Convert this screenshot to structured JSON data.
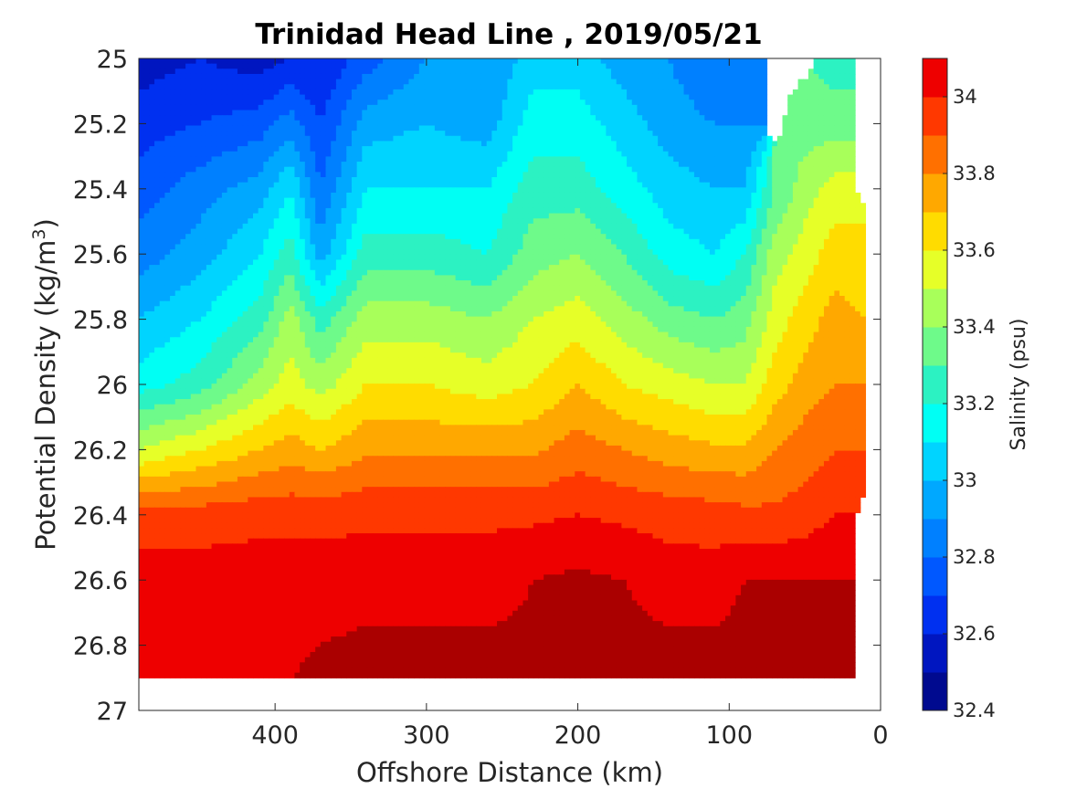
{
  "chart_data": {
    "type": "heatmap",
    "subtype": "filled-contour",
    "title": "Trinidad Head Line , 2019/05/21",
    "xlabel": "Offshore Distance (km)",
    "ylabel_main": "Potential Density (kg/m",
    "ylabel_sup": "3",
    "ylabel_end": ")",
    "colorbar_label": "Salinity (psu)",
    "xlim": [
      490,
      0
    ],
    "ylim": [
      25,
      27
    ],
    "x_reversed": true,
    "y_reversed": true,
    "xticks": [
      400,
      300,
      200,
      100,
      0
    ],
    "xtick_labels": [
      "400",
      "300",
      "200",
      "100",
      "0"
    ],
    "yticks": [
      25,
      25.2,
      25.4,
      25.6,
      25.8,
      26,
      26.2,
      26.4,
      26.6,
      26.8,
      27
    ],
    "ytick_labels": [
      "25",
      "25.2",
      "25.4",
      "25.6",
      "25.8",
      "26",
      "26.2",
      "26.4",
      "26.6",
      "26.8",
      "27"
    ],
    "colorbar_range": [
      32.4,
      34.1
    ],
    "colorbar_ticks": [
      32.4,
      32.6,
      32.8,
      33,
      33.2,
      33.4,
      33.6,
      33.8,
      34
    ],
    "colorbar_tick_labels": [
      "32.4",
      "32.6",
      "32.8",
      "33",
      "33.2",
      "33.4",
      "33.6",
      "33.8",
      "34"
    ],
    "levels": [
      32.4,
      32.5,
      32.6,
      32.7,
      32.8,
      32.9,
      33.0,
      33.1,
      33.2,
      33.3,
      33.4,
      33.5,
      33.6,
      33.7,
      33.8,
      33.9,
      34.0,
      34.1
    ],
    "colors": [
      "#000a8f",
      "#0016c0",
      "#0030f0",
      "#0058ff",
      "#0080ff",
      "#00a8ff",
      "#00d4ff",
      "#00fff4",
      "#2cf2c2",
      "#6efa8a",
      "#a8ff5a",
      "#e6ff28",
      "#ffdc00",
      "#ffa800",
      "#ff7000",
      "#ff3800",
      "#ee0000",
      "#aa0000"
    ],
    "salinity_grid": {
      "distance_km": [
        490,
        450,
        410,
        390,
        370,
        340,
        300,
        260,
        230,
        200,
        170,
        140,
        110,
        90,
        70,
        50,
        30,
        10
      ],
      "density": [
        25.0,
        25.2,
        25.4,
        25.6,
        25.8,
        26.0,
        26.2,
        26.4,
        26.6,
        26.8,
        26.9
      ],
      "values": [
        [
          32.55,
          32.6,
          32.55,
          32.6,
          32.6,
          32.75,
          32.9,
          32.9,
          33.05,
          33.05,
          32.95,
          32.9,
          32.8,
          32.8,
          null,
          null,
          33.25,
          null
        ],
        [
          32.65,
          32.7,
          32.75,
          32.85,
          32.7,
          32.95,
          33.0,
          32.95,
          33.15,
          33.15,
          33.05,
          32.95,
          32.9,
          32.9,
          null,
          33.35,
          33.35,
          null
        ],
        [
          32.75,
          32.85,
          32.95,
          33.1,
          32.8,
          33.1,
          33.1,
          33.1,
          33.25,
          33.25,
          33.15,
          33.05,
          33.0,
          33.0,
          33.3,
          33.45,
          33.55,
          null
        ],
        [
          32.85,
          32.95,
          33.1,
          33.25,
          32.95,
          33.25,
          33.25,
          33.2,
          33.35,
          33.4,
          33.3,
          33.15,
          33.1,
          33.2,
          33.45,
          33.55,
          33.65,
          33.6
        ],
        [
          33.0,
          33.1,
          33.25,
          33.45,
          33.25,
          33.45,
          33.45,
          33.4,
          33.5,
          33.55,
          33.45,
          33.35,
          33.3,
          33.35,
          33.55,
          33.65,
          33.75,
          33.7
        ],
        [
          33.15,
          33.25,
          33.45,
          33.55,
          33.45,
          33.6,
          33.6,
          33.55,
          33.6,
          33.7,
          33.6,
          33.55,
          33.5,
          33.5,
          33.65,
          33.75,
          33.8,
          33.8
        ],
        [
          33.5,
          33.6,
          33.7,
          33.75,
          33.7,
          33.78,
          33.78,
          33.78,
          33.78,
          33.85,
          33.8,
          33.75,
          33.72,
          33.72,
          33.8,
          33.85,
          33.9,
          33.9
        ],
        [
          33.95,
          33.95,
          33.97,
          33.97,
          33.97,
          33.98,
          33.98,
          33.98,
          33.98,
          34.0,
          33.98,
          33.96,
          33.95,
          33.93,
          33.92,
          33.95,
          34.0,
          null
        ],
        [
          34.05,
          34.05,
          34.05,
          34.05,
          34.05,
          34.05,
          34.05,
          34.05,
          34.1,
          34.12,
          34.1,
          34.05,
          34.05,
          34.1,
          34.1,
          34.1,
          34.1,
          null
        ],
        [
          34.08,
          34.08,
          34.08,
          34.08,
          34.1,
          34.12,
          34.12,
          34.12,
          34.12,
          34.14,
          34.13,
          34.12,
          34.12,
          34.13,
          34.14,
          34.15,
          34.15,
          null
        ],
        [
          34.1,
          34.1,
          34.1,
          34.1,
          34.12,
          34.13,
          34.13,
          34.13,
          34.14,
          34.16,
          34.15,
          34.14,
          34.14,
          34.16,
          34.18,
          34.2,
          34.2,
          null
        ]
      ]
    }
  }
}
